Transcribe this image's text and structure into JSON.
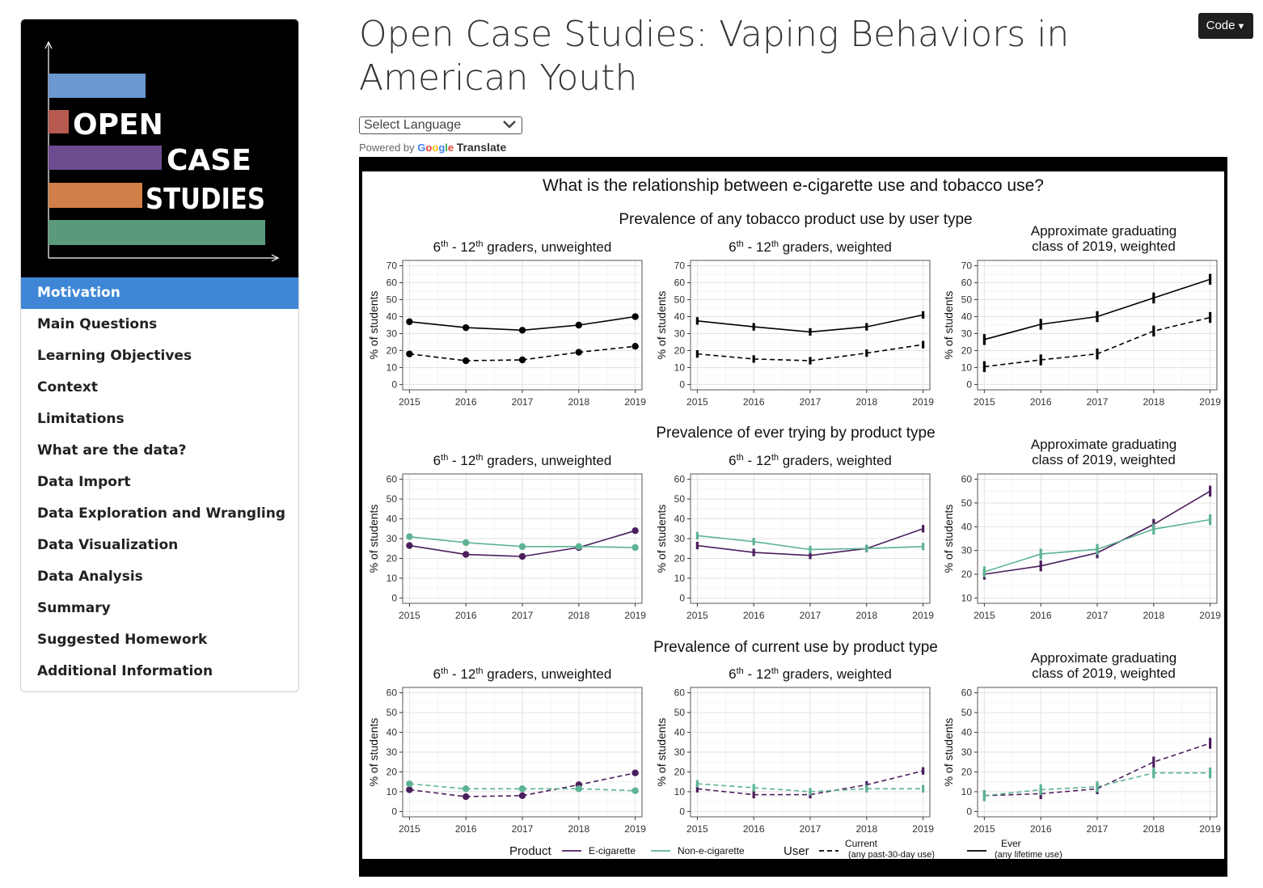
{
  "sidebar": {
    "logo": {
      "words": [
        "OPEN",
        "CASE",
        "STUDIES"
      ],
      "bar_colors": [
        "#6a98cf",
        "#b75a50",
        "#6e4b8f",
        "#cf7f47",
        "#5a9a7a"
      ]
    },
    "items": [
      {
        "label": "Motivation",
        "active": true
      },
      {
        "label": "Main Questions"
      },
      {
        "label": "Learning Objectives"
      },
      {
        "label": "Context"
      },
      {
        "label": "Limitations"
      },
      {
        "label": "What are the data?"
      },
      {
        "label": "Data Import"
      },
      {
        "label": "Data Exploration and Wrangling"
      },
      {
        "label": "Data Visualization"
      },
      {
        "label": "Data Analysis"
      },
      {
        "label": "Summary"
      },
      {
        "label": "Suggested Homework"
      },
      {
        "label": "Additional Information"
      }
    ]
  },
  "header": {
    "title": "Open Case Studies: Vaping Behaviors in American Youth",
    "code_button": "Code"
  },
  "translate": {
    "select_placeholder": "Select Language",
    "powered_by": "Powered by",
    "google": "Google",
    "translate_word": "Translate"
  },
  "colors": {
    "accent": "#3f87d6",
    "ecig": "#4b1d5c",
    "nonecig": "#5cb394",
    "user": "#000000"
  },
  "chart_data": {
    "title": "What is the relationship between e-cigarette use and tobacco use?",
    "x": [
      2015,
      2016,
      2017,
      2018,
      2019
    ],
    "panel_titles": [
      {
        "pre": "6",
        "sup1": "th",
        "mid": " - 12",
        "sup2": "th",
        "post": " graders, unweighted"
      },
      {
        "pre": "6",
        "sup1": "th",
        "mid": " - 12",
        "sup2": "th",
        "post": " graders, weighted"
      },
      {
        "pre": "Approximate graduating",
        "sup1": "",
        "mid": "",
        "sup2": "",
        "post": "class of 2019, weighted"
      }
    ],
    "ylabel": "% of students",
    "rows": [
      {
        "title": "Prevalence of any tobacco product use by user type",
        "ylim": [
          0,
          70
        ],
        "yticks": [
          0,
          10,
          20,
          30,
          40,
          50,
          60,
          70
        ],
        "panels": [
          {
            "type": "line",
            "series": [
              {
                "color": "#000000",
                "dash": false,
                "values": [
                  37,
                  33.5,
                  32,
                  35,
                  40
                ]
              },
              {
                "color": "#000000",
                "dash": true,
                "values": [
                  18,
                  14,
                  14.5,
                  19,
                  22.5
                ]
              }
            ]
          },
          {
            "type": "line",
            "series": [
              {
                "color": "#000000",
                "dash": false,
                "values": [
                  37.5,
                  34,
                  31,
                  34,
                  41
                ]
              },
              {
                "color": "#000000",
                "dash": true,
                "values": [
                  18,
                  15,
                  14,
                  18.5,
                  23.5
                ]
              }
            ]
          },
          {
            "type": "line",
            "series": [
              {
                "color": "#000000",
                "dash": false,
                "values": [
                  26.5,
                  35.5,
                  40,
                  51,
                  62
                ]
              },
              {
                "color": "#000000",
                "dash": true,
                "values": [
                  10.5,
                  14.5,
                  18,
                  31.5,
                  39.5
                ]
              }
            ]
          }
        ]
      },
      {
        "title": "Prevalence of ever trying by product type",
        "ylim": [
          0,
          60
        ],
        "yticks": [
          0,
          10,
          20,
          30,
          40,
          50,
          60
        ],
        "panels": [
          {
            "type": "line",
            "series": [
              {
                "name": "E-cigarette",
                "color": "#4b1d5c",
                "dash": false,
                "values": [
                  26.5,
                  22,
                  21,
                  25.5,
                  34
                ]
              },
              {
                "name": "Non-e-cigarette",
                "color": "#5cb394",
                "dash": false,
                "values": [
                  31,
                  28,
                  26,
                  26,
                  25.5
                ]
              }
            ]
          },
          {
            "type": "line",
            "series": [
              {
                "name": "E-cigarette",
                "color": "#4b1d5c",
                "dash": false,
                "values": [
                  26.5,
                  23,
                  21.5,
                  25,
                  35
                ]
              },
              {
                "name": "Non-e-cigarette",
                "color": "#5cb394",
                "dash": false,
                "values": [
                  31.5,
                  28.5,
                  24.5,
                  25,
                  26
                ]
              }
            ]
          },
          {
            "type": "line",
            "ylim": [
              10,
              60
            ],
            "yticks": [
              10,
              20,
              30,
              40,
              50,
              60
            ],
            "series": [
              {
                "name": "E-cigarette",
                "color": "#4b1d5c",
                "dash": false,
                "values": [
                  20,
                  23.5,
                  29,
                  41,
                  55
                ]
              },
              {
                "name": "Non-e-cigarette",
                "color": "#5cb394",
                "dash": false,
                "values": [
                  21,
                  28.5,
                  30.5,
                  39,
                  43
                ]
              }
            ]
          }
        ]
      },
      {
        "title": "Prevalence of current use by product type",
        "ylim": [
          0,
          60
        ],
        "yticks": [
          0,
          10,
          20,
          30,
          40,
          50,
          60
        ],
        "panels": [
          {
            "type": "line",
            "series": [
              {
                "name": "E-cigarette",
                "color": "#4b1d5c",
                "dash": true,
                "values": [
                  11,
                  7.5,
                  8,
                  13.5,
                  19.5
                ]
              },
              {
                "name": "Non-e-cigarette",
                "color": "#5cb394",
                "dash": true,
                "values": [
                  14,
                  11.5,
                  11.5,
                  11.5,
                  10.5
                ]
              }
            ]
          },
          {
            "type": "line",
            "series": [
              {
                "name": "E-cigarette",
                "color": "#4b1d5c",
                "dash": true,
                "values": [
                  11.5,
                  8.5,
                  8.5,
                  13.5,
                  20.5
                ]
              },
              {
                "name": "Non-e-cigarette",
                "color": "#5cb394",
                "dash": true,
                "values": [
                  14,
                  12,
                  10,
                  11.5,
                  11.5
                ]
              }
            ]
          },
          {
            "type": "line",
            "series": [
              {
                "name": "E-cigarette",
                "color": "#4b1d5c",
                "dash": true,
                "values": [
                  8,
                  9,
                  11.5,
                  25,
                  34.5
                ]
              },
              {
                "name": "Non-e-cigarette",
                "color": "#5cb394",
                "dash": true,
                "values": [
                  8,
                  11,
                  12.5,
                  19.5,
                  19.5
                ]
              }
            ]
          }
        ]
      }
    ],
    "legend": {
      "product_title": "Product",
      "product_items": [
        {
          "label": "E-cigarette",
          "color": "#4b1d5c"
        },
        {
          "label": "Non-e-cigarette",
          "color": "#5cb394"
        }
      ],
      "user_title": "User",
      "user_items": [
        {
          "label": "Current",
          "sublabel": "(any past-30-day use)",
          "dash": true
        },
        {
          "label": "Ever",
          "sublabel": "(any lifetime use)",
          "dash": false
        }
      ]
    }
  }
}
